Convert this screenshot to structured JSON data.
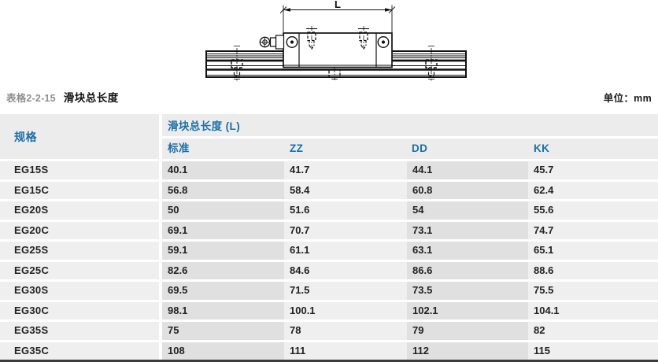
{
  "drawing": {
    "dimension_label": "L",
    "description_names": [
      "linear-guide-block-side-view",
      "rail",
      "grease-nipple",
      "mounting-bolts"
    ]
  },
  "caption": {
    "table_number": "表格2-2-15",
    "title": "滑块总长度",
    "unit_label": "单位：mm"
  },
  "table": {
    "spec_header": "规格",
    "group_header": "滑块总长度 (L)",
    "sub_headers": [
      "标准",
      "ZZ",
      "DD",
      "KK"
    ],
    "rows": [
      {
        "spec": "EG15S",
        "std": "40.1",
        "zz": "41.7",
        "dd": "44.1",
        "kk": "45.7"
      },
      {
        "spec": "EG15C",
        "std": "56.8",
        "zz": "58.4",
        "dd": "60.8",
        "kk": "62.4"
      },
      {
        "spec": "EG20S",
        "std": "50",
        "zz": "51.6",
        "dd": "54",
        "kk": "55.6"
      },
      {
        "spec": "EG20C",
        "std": "69.1",
        "zz": "70.7",
        "dd": "73.1",
        "kk": "74.7"
      },
      {
        "spec": "EG25S",
        "std": "59.1",
        "zz": "61.1",
        "dd": "63.1",
        "kk": "65.1"
      },
      {
        "spec": "EG25C",
        "std": "82.6",
        "zz": "84.6",
        "dd": "86.6",
        "kk": "88.6"
      },
      {
        "spec": "EG30S",
        "std": "69.5",
        "zz": "71.5",
        "dd": "73.5",
        "kk": "75.5"
      },
      {
        "spec": "EG30C",
        "std": "98.1",
        "zz": "100.1",
        "dd": "102.1",
        "kk": "104.1"
      },
      {
        "spec": "EG35S",
        "std": "75",
        "zz": "78",
        "dd": "79",
        "kk": "82"
      },
      {
        "spec": "EG35C",
        "std": "108",
        "zz": "111",
        "dd": "112",
        "kk": "115"
      }
    ]
  },
  "colors": {
    "accent_blue": "#1d6fa5",
    "header_bg": "#ececec",
    "cell_light": "#efefef",
    "cell_dark": "#e0e0e0",
    "bottom_border": "#3b3b3b",
    "caption_gray": "#8f8f8f"
  }
}
